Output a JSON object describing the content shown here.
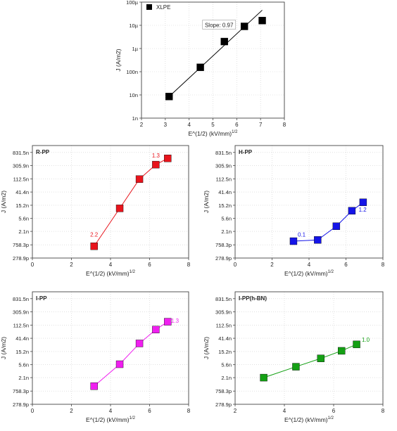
{
  "chart_data": [
    {
      "type": "scatter",
      "title": "",
      "panel_label": "",
      "xlabel": "E^(1/2) (kV/mm)",
      "xlabel_sup": "1/2",
      "ylabel": "J (A/m2)",
      "xlim": [
        2,
        8
      ],
      "x_ticks": [
        "2",
        "3",
        "4",
        "5",
        "6",
        "7",
        "8"
      ],
      "y_scale": "log",
      "ylim": [
        1e-09,
        0.0001
      ],
      "y_ticks": [
        {
          "value": 1e-09,
          "label": "1n"
        },
        {
          "value": 1e-08,
          "label": "10n"
        },
        {
          "value": 1e-07,
          "label": "100n"
        },
        {
          "value": 1e-06,
          "label": "1µ"
        },
        {
          "value": 1e-05,
          "label": "10µ"
        },
        {
          "value": 0.0001,
          "label": "100µ"
        }
      ],
      "legend": {
        "position": "top-left",
        "entries": [
          "XLPE"
        ]
      },
      "color": "#000000",
      "series": [
        {
          "name": "XLPE",
          "x": [
            3.16,
            4.47,
            5.48,
            6.32,
            7.07
          ],
          "y": [
            8.5e-09,
            1.55e-07,
            2e-06,
            9e-06,
            1.6e-05
          ]
        }
      ],
      "fit_line": {
        "x": [
          3.16,
          7.07
        ],
        "y": [
          8.5e-09,
          4.5e-05
        ]
      },
      "annotations": [
        {
          "text": "Slope: 0.97",
          "x": 5.45,
          "y": 9e-06,
          "boxed": true
        }
      ]
    },
    {
      "type": "scatter",
      "title": "",
      "panel_label": "R-PP",
      "xlabel": "E^(1/2) (kV/mm)",
      "xlabel_sup": "1/2",
      "ylabel": "J (A/m2)",
      "xlim": [
        0,
        8
      ],
      "x_ticks": [
        "0",
        "2",
        "4",
        "6",
        "8"
      ],
      "y_scale": "log",
      "ylim": [
        2.789e-10,
        1.4e-06
      ],
      "y_ticks": [
        {
          "value": 2.789e-10,
          "label": "278.9p"
        },
        {
          "value": 7.583e-10,
          "label": "758.3p"
        },
        {
          "value": 2.1e-09,
          "label": "2.1n"
        },
        {
          "value": 5.6e-09,
          "label": "5.6n"
        },
        {
          "value": 1.52e-08,
          "label": "15.2n"
        },
        {
          "value": 4.14e-08,
          "label": "41.4n"
        },
        {
          "value": 1.125e-07,
          "label": "112.5n"
        },
        {
          "value": 3.059e-07,
          "label": "305.9n"
        },
        {
          "value": 8.315e-07,
          "label": "831.5n"
        }
      ],
      "color": "#e8141c",
      "series": [
        {
          "name": "",
          "x": [
            3.16,
            4.47,
            5.48,
            6.32,
            6.93
          ],
          "y": [
            6.8e-10,
            1.2e-08,
            1.1e-07,
            3.3e-07,
            5.3e-07
          ]
        }
      ],
      "annotations": [
        {
          "text": "2.2",
          "x": 3.16,
          "y": 1.4e-09
        },
        {
          "text": "1.3",
          "x": 6.32,
          "y": 5.6e-07
        }
      ]
    },
    {
      "type": "scatter",
      "title": "",
      "panel_label": "H-PP",
      "xlabel": "E^(1/2) (kV/mm)",
      "xlabel_sup": "1/2",
      "ylabel": "J (A/m2)",
      "xlim": [
        0,
        8
      ],
      "x_ticks": [
        "0",
        "2",
        "4",
        "6",
        "8"
      ],
      "y_scale": "log",
      "ylim": [
        2.789e-10,
        1.4e-06
      ],
      "y_ticks": [
        {
          "value": 2.789e-10,
          "label": "278.9p"
        },
        {
          "value": 7.583e-10,
          "label": "758.3p"
        },
        {
          "value": 2.1e-09,
          "label": "2.1n"
        },
        {
          "value": 5.6e-09,
          "label": "5.6n"
        },
        {
          "value": 1.52e-08,
          "label": "15.2n"
        },
        {
          "value": 4.14e-08,
          "label": "41.4n"
        },
        {
          "value": 1.125e-07,
          "label": "112.5n"
        },
        {
          "value": 3.059e-07,
          "label": "305.9n"
        },
        {
          "value": 8.315e-07,
          "label": "831.5n"
        }
      ],
      "color": "#1414e8",
      "series": [
        {
          "name": "",
          "x": [
            3.16,
            4.47,
            5.48,
            6.32,
            6.93
          ],
          "y": [
            1e-09,
            1.1e-09,
            3.1e-09,
            1e-08,
            1.9e-08
          ]
        }
      ],
      "annotations": [
        {
          "text": "0.1",
          "x": 3.6,
          "y": 1.4e-09
        },
        {
          "text": "1.2",
          "x": 6.9,
          "y": 9.5e-09
        }
      ]
    },
    {
      "type": "scatter",
      "title": "",
      "panel_label": "I-PP",
      "xlabel": "E^(1/2) (kV/mm)",
      "xlabel_sup": "1/2",
      "ylabel": "J (A/m2)",
      "xlim": [
        0,
        8
      ],
      "x_ticks": [
        "0",
        "2",
        "4",
        "6",
        "8"
      ],
      "y_scale": "log",
      "ylim": [
        2.789e-10,
        1.4e-06
      ],
      "y_ticks": [
        {
          "value": 2.789e-10,
          "label": "278.9p"
        },
        {
          "value": 7.583e-10,
          "label": "758.3p"
        },
        {
          "value": 2.1e-09,
          "label": "2.1n"
        },
        {
          "value": 5.6e-09,
          "label": "5.6n"
        },
        {
          "value": 1.52e-08,
          "label": "15.2n"
        },
        {
          "value": 4.14e-08,
          "label": "41.4n"
        },
        {
          "value": 1.125e-07,
          "label": "112.5n"
        },
        {
          "value": 3.059e-07,
          "label": "305.9n"
        },
        {
          "value": 8.315e-07,
          "label": "831.5n"
        }
      ],
      "color": "#f01ef0",
      "series": [
        {
          "name": "",
          "x": [
            3.16,
            4.47,
            5.48,
            6.32,
            6.93
          ],
          "y": [
            1.1e-09,
            5.8e-09,
            2.8e-08,
            8e-08,
            1.45e-07
          ]
        }
      ],
      "annotations": [
        {
          "text": "1.3",
          "x": 7.3,
          "y": 1.35e-07
        }
      ]
    },
    {
      "type": "scatter",
      "title": "",
      "panel_label": "I-PP(h-BN)",
      "xlabel": "E^(1/2) (kV/mm)",
      "xlabel_sup": "1/2",
      "ylabel": "J (A/m2)",
      "xlim": [
        2,
        8
      ],
      "x_ticks": [
        "2",
        "4",
        "6",
        "8"
      ],
      "y_scale": "log",
      "ylim": [
        2.789e-10,
        1.4e-06
      ],
      "y_ticks": [
        {
          "value": 2.789e-10,
          "label": "278.9p"
        },
        {
          "value": 7.583e-10,
          "label": "758.3p"
        },
        {
          "value": 2.1e-09,
          "label": "2.1n"
        },
        {
          "value": 5.6e-09,
          "label": "5.6n"
        },
        {
          "value": 1.52e-08,
          "label": "15.2n"
        },
        {
          "value": 4.14e-08,
          "label": "41.4n"
        },
        {
          "value": 1.125e-07,
          "label": "112.5n"
        },
        {
          "value": 3.059e-07,
          "label": "305.9n"
        },
        {
          "value": 8.315e-07,
          "label": "831.5n"
        }
      ],
      "color": "#14a014",
      "series": [
        {
          "name": "",
          "x": [
            3.16,
            4.47,
            5.48,
            6.32,
            6.93
          ],
          "y": [
            2.1e-09,
            4.8e-09,
            9e-09,
            1.6e-08,
            2.6e-08
          ]
        }
      ],
      "annotations": [
        {
          "text": "1.0",
          "x": 7.3,
          "y": 3.2e-08
        }
      ]
    }
  ]
}
